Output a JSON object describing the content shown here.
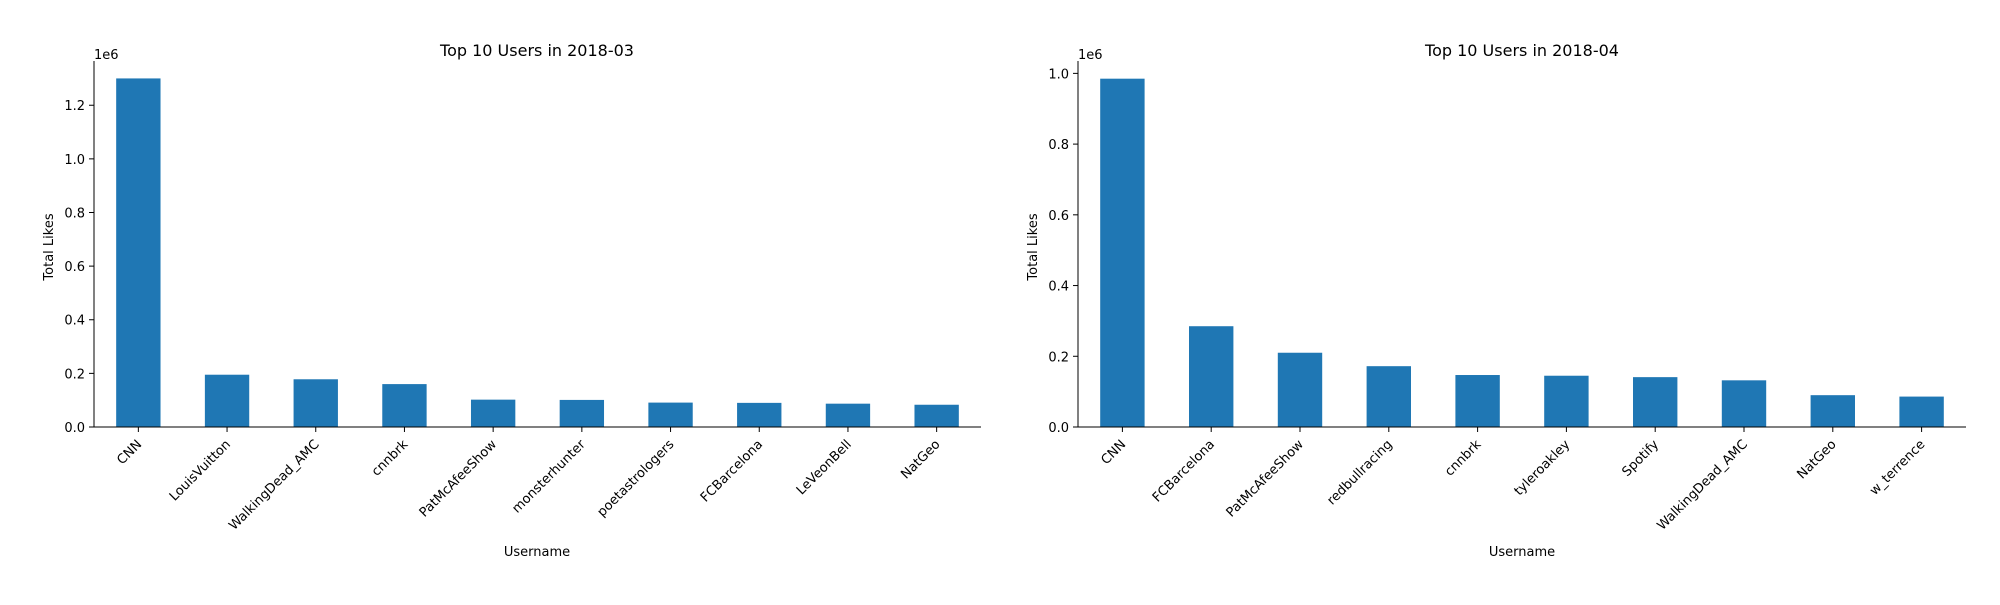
{
  "chart_data": [
    {
      "type": "bar",
      "title": "Top 10 Users in 2018-03",
      "xlabel": "Username",
      "ylabel": "Total Likes",
      "offset_text": "1e6",
      "categories": [
        "CNN",
        "LouisVuitton",
        "WalkingDead_AMC",
        "cnnbrk",
        "PatMcAfeeShow",
        "monsterhunter",
        "poetastrologers",
        "FCBarcelona",
        "LeVeonBell",
        "NatGeo"
      ],
      "values": [
        1300000,
        195000,
        178000,
        160000,
        102000,
        101000,
        91000,
        90000,
        87000,
        83000
      ],
      "ylim": [
        0,
        1365000
      ],
      "yticks": [
        0,
        200000,
        400000,
        600000,
        800000,
        1000000,
        1200000
      ],
      "ytick_labels": [
        "0.0",
        "0.2",
        "0.4",
        "0.6",
        "0.8",
        "1.0",
        "1.2"
      ],
      "color": "#1f77b4",
      "grid": false,
      "legend": "none"
    },
    {
      "type": "bar",
      "title": "Top 10 Users in 2018-04",
      "xlabel": "Username",
      "ylabel": "Total Likes",
      "offset_text": "1e6",
      "categories": [
        "CNN",
        "FCBarcelona",
        "PatMcAfeeShow",
        "redbullracing",
        "cnnbrk",
        "tyleroakley",
        "Spotify",
        "WalkingDead_AMC",
        "NatGeo",
        "w_terrence"
      ],
      "values": [
        985000,
        285000,
        210000,
        172000,
        147000,
        145000,
        141000,
        132000,
        90000,
        86000
      ],
      "ylim": [
        0,
        1035000
      ],
      "yticks": [
        0,
        200000,
        400000,
        600000,
        800000,
        1000000
      ],
      "ytick_labels": [
        "0.0",
        "0.2",
        "0.4",
        "0.6",
        "0.8",
        "1.0"
      ],
      "color": "#1f77b4",
      "grid": false,
      "legend": "none"
    }
  ]
}
